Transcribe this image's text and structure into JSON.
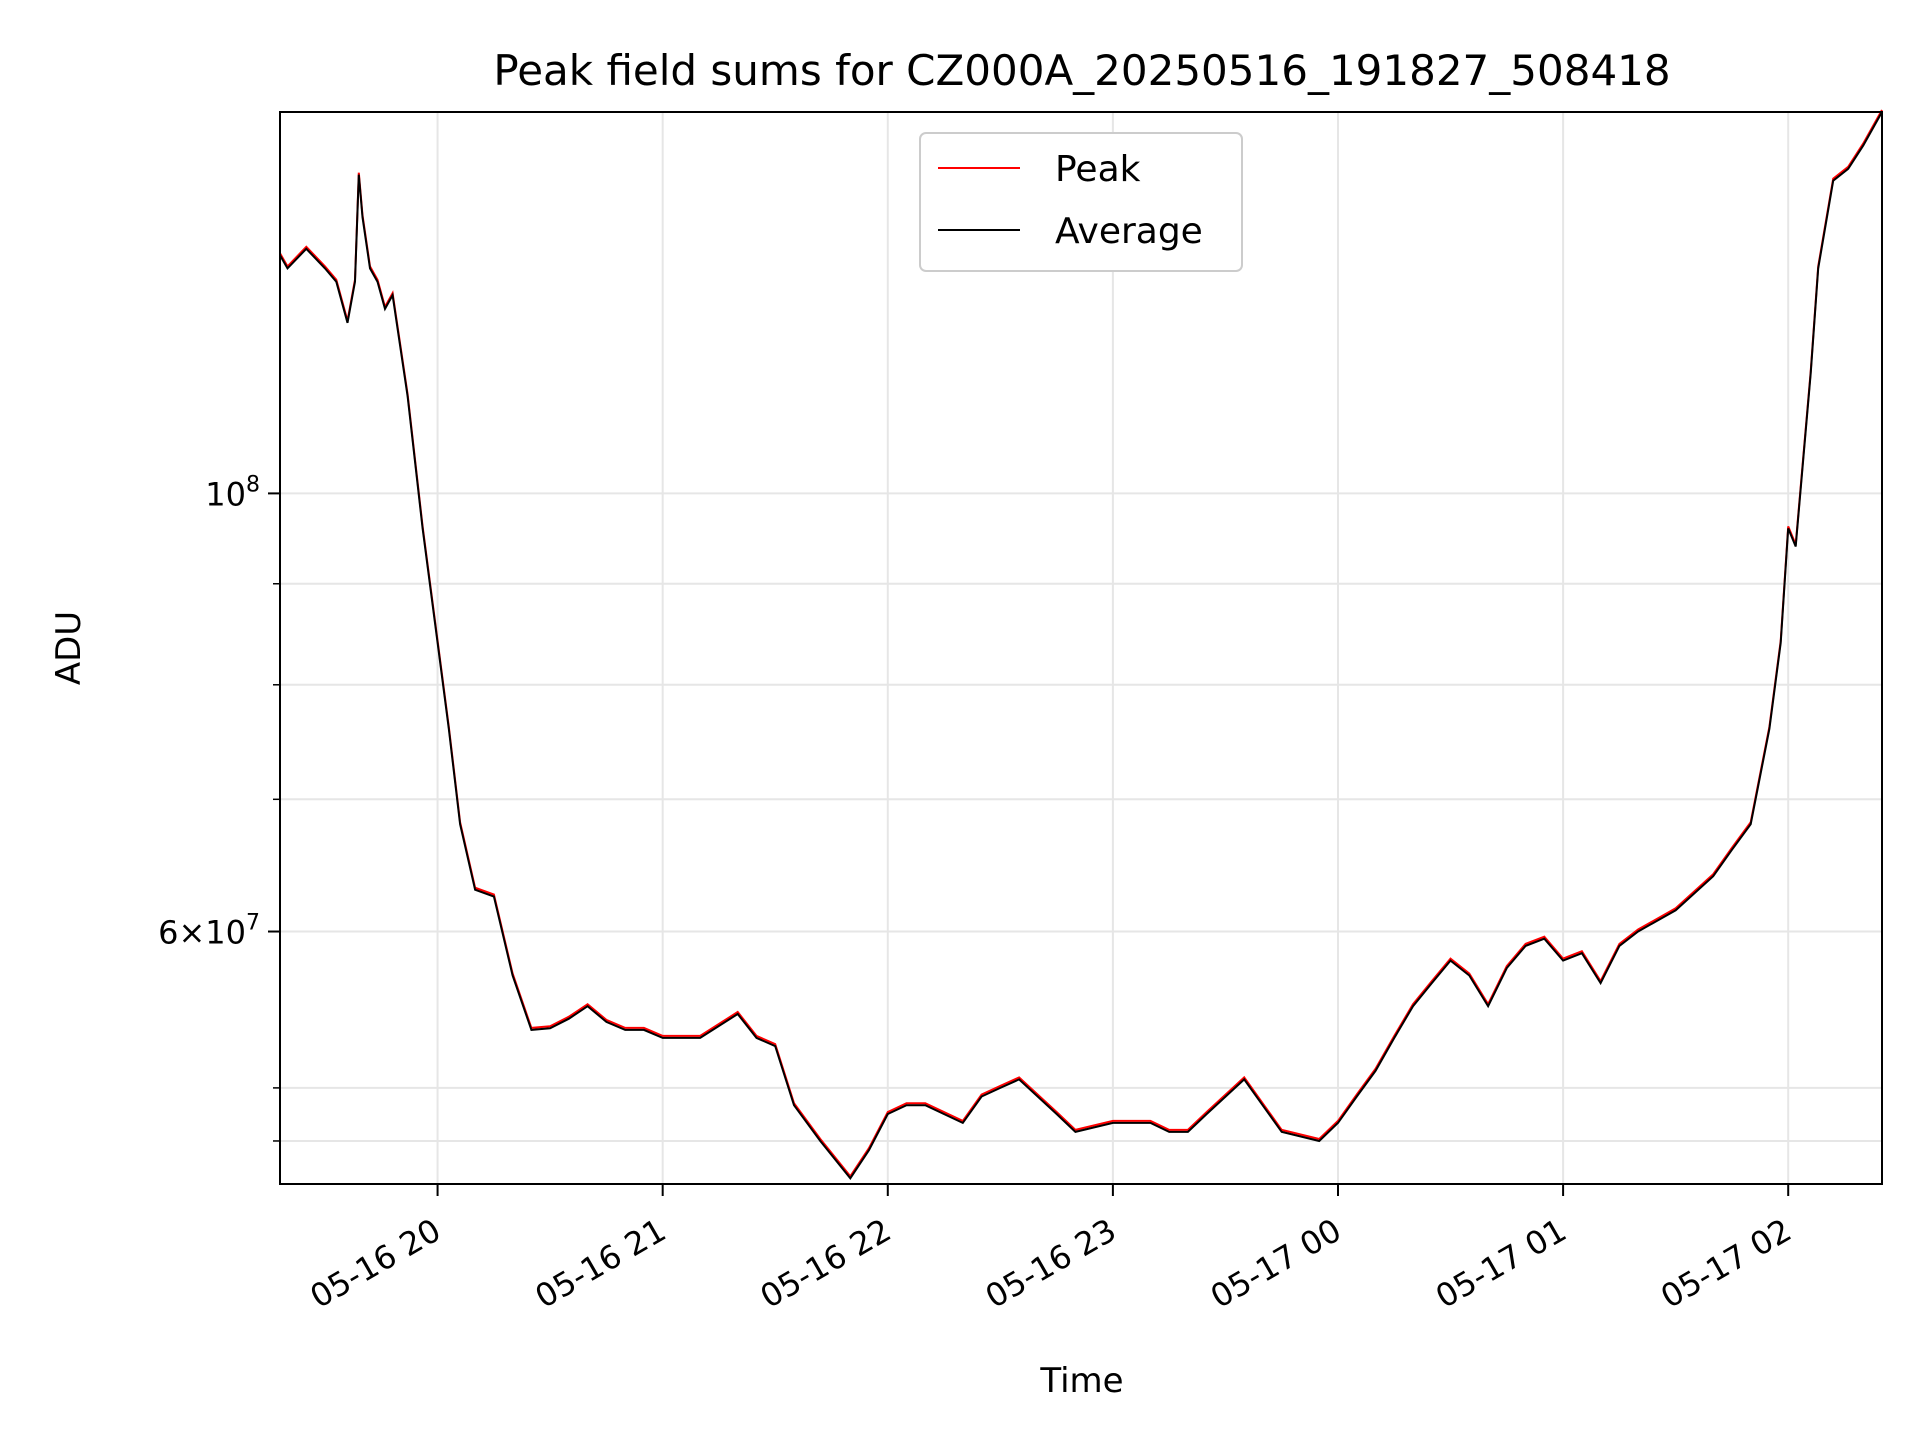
{
  "chart_data": {
    "type": "line",
    "title": "Peak field sums for CZ000A_20250516_191827_508418",
    "xlabel": "Time",
    "ylabel": "ADU",
    "yscale": "log",
    "xlim": [
      "2025-05-16 19:18",
      "2025-05-17 02:25"
    ],
    "ylim": [
      44700000,
      156000000
    ],
    "x_ticks": [
      "05-16 20",
      "05-16 21",
      "05-16 22",
      "05-16 23",
      "05-17 00",
      "05-17 01",
      "05-17 02"
    ],
    "y_tick_labels": [
      {
        "value": 100000000,
        "mantissa": "",
        "exp": "8"
      },
      {
        "value": 60000000,
        "mantissa": "6",
        "exp": "7"
      }
    ],
    "y_minor_ticks": [
      47000000,
      50000000,
      70000000,
      80000000,
      90000000
    ],
    "grid": true,
    "legend_position": "top-center",
    "series": [
      {
        "name": "Peak",
        "color": "#ff0000"
      },
      {
        "name": "Average",
        "color": "#000000"
      }
    ],
    "x": [
      "2025-05-16 19:18",
      "2025-05-16 19:20",
      "2025-05-16 19:25",
      "2025-05-16 19:30",
      "2025-05-16 19:33",
      "2025-05-16 19:36",
      "2025-05-16 19:38",
      "2025-05-16 19:39",
      "2025-05-16 19:40",
      "2025-05-16 19:42",
      "2025-05-16 19:44",
      "2025-05-16 19:46",
      "2025-05-16 19:48",
      "2025-05-16 19:52",
      "2025-05-16 19:56",
      "2025-05-16 20:00",
      "2025-05-16 20:03",
      "2025-05-16 20:06",
      "2025-05-16 20:10",
      "2025-05-16 20:15",
      "2025-05-16 20:20",
      "2025-05-16 20:25",
      "2025-05-16 20:30",
      "2025-05-16 20:35",
      "2025-05-16 20:40",
      "2025-05-16 20:45",
      "2025-05-16 20:50",
      "2025-05-16 20:55",
      "2025-05-16 21:00",
      "2025-05-16 21:10",
      "2025-05-16 21:20",
      "2025-05-16 21:25",
      "2025-05-16 21:30",
      "2025-05-16 21:35",
      "2025-05-16 21:42",
      "2025-05-16 21:50",
      "2025-05-16 21:55",
      "2025-05-16 22:00",
      "2025-05-16 22:05",
      "2025-05-16 22:10",
      "2025-05-16 22:20",
      "2025-05-16 22:25",
      "2025-05-16 22:30",
      "2025-05-16 22:35",
      "2025-05-16 22:45",
      "2025-05-16 22:50",
      "2025-05-16 23:00",
      "2025-05-16 23:10",
      "2025-05-16 23:15",
      "2025-05-16 23:20",
      "2025-05-16 23:25",
      "2025-05-16 23:35",
      "2025-05-16 23:45",
      "2025-05-16 23:55",
      "2025-05-17 00:00",
      "2025-05-17 00:05",
      "2025-05-17 00:10",
      "2025-05-17 00:15",
      "2025-05-17 00:20",
      "2025-05-17 00:25",
      "2025-05-17 00:30",
      "2025-05-17 00:35",
      "2025-05-17 00:40",
      "2025-05-17 00:45",
      "2025-05-17 00:50",
      "2025-05-17 00:55",
      "2025-05-17 01:00",
      "2025-05-17 01:05",
      "2025-05-17 01:10",
      "2025-05-17 01:15",
      "2025-05-17 01:20",
      "2025-05-17 01:30",
      "2025-05-17 01:40",
      "2025-05-17 01:45",
      "2025-05-17 01:50",
      "2025-05-17 01:55",
      "2025-05-17 01:58",
      "2025-05-17 02:00",
      "2025-05-17 02:02",
      "2025-05-17 02:04",
      "2025-05-17 02:06",
      "2025-05-17 02:08",
      "2025-05-17 02:12",
      "2025-05-17 02:16",
      "2025-05-17 02:20",
      "2025-05-17 02:25"
    ],
    "values": [
      132000000,
      130000000,
      133000000,
      130000000,
      128000000,
      122000000,
      128000000,
      145000000,
      138000000,
      130000000,
      128000000,
      124000000,
      126000000,
      112000000,
      96000000,
      84000000,
      76000000,
      68000000,
      63000000,
      62500000,
      57000000,
      53500000,
      53600000,
      54200000,
      55000000,
      54000000,
      53500000,
      53500000,
      53000000,
      53000000,
      54500000,
      53000000,
      52500000,
      49000000,
      47000000,
      45000000,
      46500000,
      48500000,
      49000000,
      49000000,
      48000000,
      49500000,
      50000000,
      50500000,
      48500000,
      47500000,
      48000000,
      48000000,
      47500000,
      47500000,
      48500000,
      50500000,
      47500000,
      47000000,
      48000000,
      49500000,
      51000000,
      53000000,
      55000000,
      56500000,
      58000000,
      57000000,
      55000000,
      57500000,
      59000000,
      59500000,
      58000000,
      58500000,
      56500000,
      59000000,
      60000000,
      61500000,
      64000000,
      66000000,
      68000000,
      76000000,
      84000000,
      96000000,
      94000000,
      104000000,
      115000000,
      130000000,
      144000000,
      146000000,
      150000000,
      156000000
    ]
  }
}
